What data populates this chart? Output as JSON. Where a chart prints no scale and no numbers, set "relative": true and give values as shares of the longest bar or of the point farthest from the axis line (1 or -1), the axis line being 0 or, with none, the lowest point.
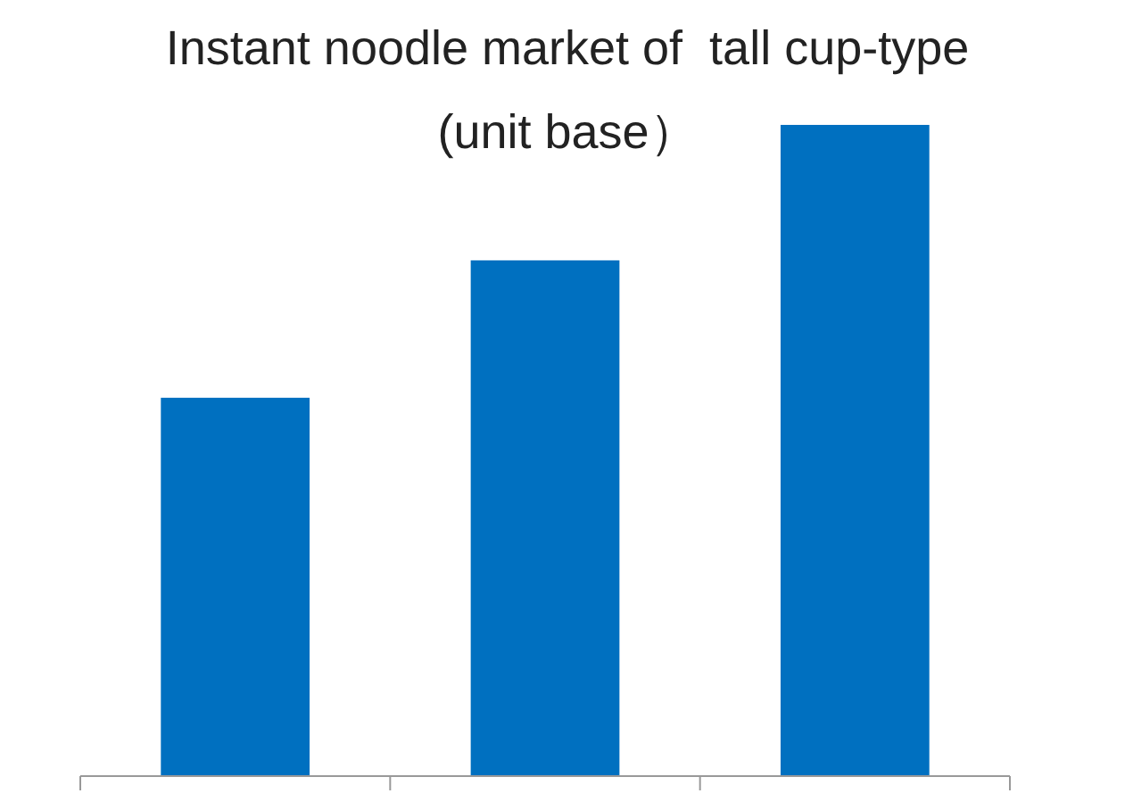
{
  "chart_data": {
    "type": "bar",
    "title": "Instant noodle market of  tall cup-type",
    "subtitle": "(unit base）",
    "categories": [
      null,
      null,
      null
    ],
    "values": [
      0.581,
      0.792,
      1
    ],
    "color": "#0070c0",
    "relative": true
  }
}
